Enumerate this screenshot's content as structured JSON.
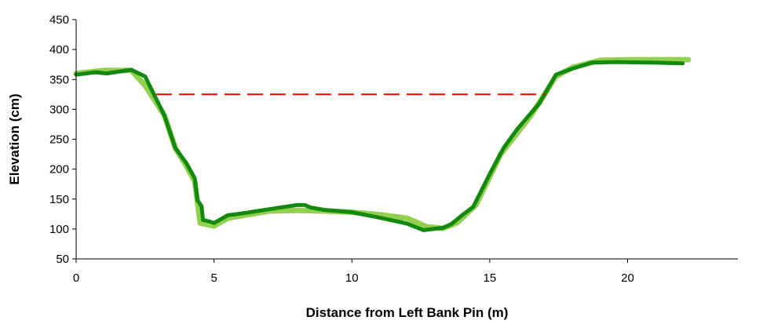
{
  "chart_data": {
    "type": "line",
    "title": "",
    "xlabel": "Distance from Left Bank Pin (m)",
    "ylabel": "Elevation (cm)",
    "xlim": [
      0,
      24
    ],
    "ylim": [
      50,
      450
    ],
    "x_ticks": [
      0,
      5,
      10,
      15,
      20
    ],
    "y_ticks": [
      50,
      100,
      150,
      200,
      250,
      300,
      350,
      400,
      450
    ],
    "grid": false,
    "legend": "none",
    "series": [
      {
        "style": "solid-thick",
        "color": "#92D050",
        "x": [
          0,
          1.0,
          2.0,
          2.5,
          3.2,
          3.6,
          4.0,
          4.3,
          4.5,
          5.0,
          5.5,
          6.0,
          7.0,
          8.0,
          9.0,
          10.0,
          11.0,
          12.0,
          12.7,
          13.3,
          13.8,
          14.5,
          15.4,
          16.5,
          17.4,
          18.0,
          19.0,
          20.0,
          21.0,
          22.2
        ],
        "y": [
          360,
          365,
          365,
          340,
          290,
          235,
          205,
          180,
          110,
          105,
          118,
          122,
          130,
          131,
          130,
          128,
          124,
          118,
          104,
          101,
          110,
          140,
          225,
          290,
          355,
          370,
          382,
          383,
          383,
          383
        ]
      },
      {
        "style": "solid-thick",
        "color": "#138A0F",
        "x": [
          0,
          0.7,
          1.1,
          2.0,
          2.5,
          3.2,
          3.6,
          4.0,
          4.3,
          4.4,
          4.55,
          4.6,
          4.8,
          5.0,
          5.5,
          6.0,
          7.0,
          8.0,
          8.3,
          8.5,
          9.0,
          10.0,
          11.0,
          12.0,
          12.6,
          13.3,
          13.6,
          14.0,
          14.4,
          15.0,
          15.5,
          16.0,
          16.8,
          17.4,
          17.7,
          18.0,
          18.7,
          19.5,
          21.0,
          22.0
        ],
        "y": [
          358,
          362,
          360,
          366,
          355,
          290,
          235,
          210,
          185,
          148,
          138,
          115,
          113,
          110,
          123,
          126,
          133,
          140,
          140,
          136,
          132,
          128,
          119,
          109,
          98,
          102,
          108,
          123,
          137,
          192,
          235,
          267,
          310,
          358,
          363,
          368,
          378,
          379,
          378,
          377
        ]
      },
      {
        "style": "dashed",
        "color": "#FF0000",
        "x": [
          2.9,
          17.0
        ],
        "y": [
          325,
          325
        ]
      }
    ]
  }
}
